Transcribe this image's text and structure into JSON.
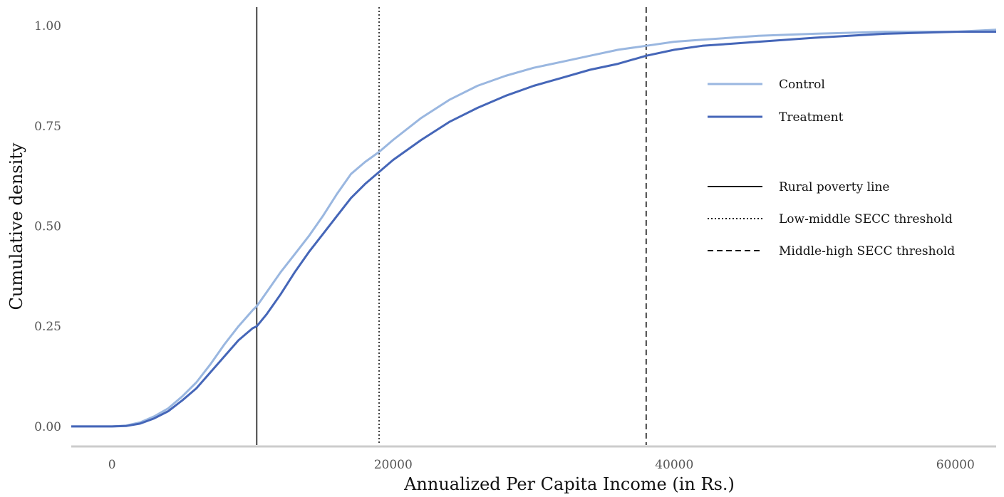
{
  "chart_data": {
    "type": "line",
    "xlabel": "Annualized Per Capita Income (in Rs.)",
    "ylabel": "Cumulative density",
    "xlim": [
      -2900,
      62900
    ],
    "ylim": [
      -0.05,
      1.05
    ],
    "x_ticks": [
      0,
      20000,
      40000,
      60000
    ],
    "x_tick_labels": [
      "0",
      "20000",
      "40000",
      "60000"
    ],
    "y_ticks": [
      0,
      0.25,
      0.5,
      0.75,
      1.0
    ],
    "y_tick_labels": [
      "0.00",
      "0.25",
      "0.50",
      "0.75",
      "1.00"
    ],
    "grid": false,
    "legend_position": "right",
    "series": [
      {
        "name": "Control",
        "color": "#9ab7e0",
        "x": [
          -2900,
          0,
          1000,
          2000,
          3000,
          4000,
          5000,
          6000,
          7000,
          8000,
          9000,
          10000,
          10300,
          11000,
          12000,
          13000,
          14000,
          15000,
          16000,
          17000,
          18000,
          19000,
          20000,
          22000,
          24000,
          26000,
          28000,
          30000,
          32000,
          34000,
          36000,
          38000,
          40000,
          42000,
          44000,
          46000,
          50000,
          55000,
          60000,
          62900
        ],
        "y": [
          0,
          0,
          0.002,
          0.01,
          0.025,
          0.045,
          0.075,
          0.11,
          0.155,
          0.205,
          0.25,
          0.29,
          0.3,
          0.335,
          0.385,
          0.43,
          0.475,
          0.525,
          0.58,
          0.63,
          0.66,
          0.685,
          0.715,
          0.77,
          0.815,
          0.85,
          0.875,
          0.895,
          0.91,
          0.925,
          0.94,
          0.95,
          0.96,
          0.965,
          0.97,
          0.975,
          0.98,
          0.985,
          0.985,
          0.99
        ]
      },
      {
        "name": "Treatment",
        "color": "#4566b8",
        "x": [
          -2900,
          0,
          1000,
          2000,
          3000,
          4000,
          5000,
          6000,
          7000,
          8000,
          9000,
          10000,
          10300,
          11000,
          12000,
          13000,
          14000,
          15000,
          16000,
          17000,
          18000,
          19000,
          20000,
          22000,
          24000,
          26000,
          28000,
          30000,
          32000,
          34000,
          36000,
          38000,
          40000,
          42000,
          44000,
          46000,
          50000,
          55000,
          60000,
          62900
        ],
        "y": [
          0,
          0,
          0.001,
          0.007,
          0.02,
          0.038,
          0.065,
          0.095,
          0.135,
          0.175,
          0.215,
          0.245,
          0.25,
          0.28,
          0.33,
          0.385,
          0.435,
          0.48,
          0.525,
          0.57,
          0.605,
          0.635,
          0.665,
          0.715,
          0.76,
          0.795,
          0.825,
          0.85,
          0.87,
          0.89,
          0.905,
          0.925,
          0.94,
          0.95,
          0.955,
          0.96,
          0.97,
          0.98,
          0.985,
          0.985
        ]
      }
    ],
    "reference_lines": [
      {
        "name": "Rural poverty line",
        "x": 10300,
        "style": "solid"
      },
      {
        "name": "Low-middle SECC threshold",
        "x": 19000,
        "style": "dotted"
      },
      {
        "name": "Middle-high SECC threshold",
        "x": 38000,
        "style": "dashed"
      }
    ]
  }
}
